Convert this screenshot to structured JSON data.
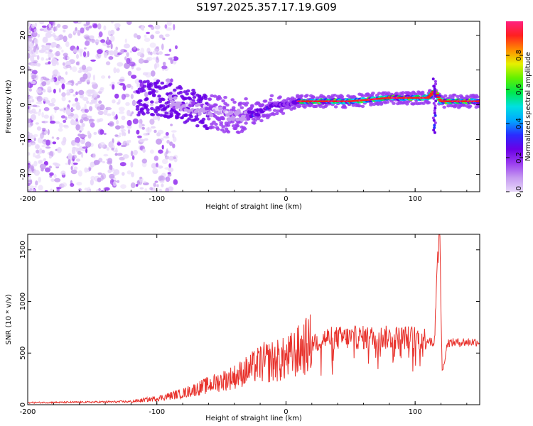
{
  "title": "S197.2025.357.17.19.G09",
  "colors": {
    "snr_line": "#e8322c",
    "frame": "#000000",
    "colormap": [
      "#ffffff",
      "#e8d8fa",
      "#c59af0",
      "#9a3cf0",
      "#6a00e6",
      "#2a2cff",
      "#00a8ff",
      "#00e0e0",
      "#00e84c",
      "#62f000",
      "#e6f000",
      "#ff8c00",
      "#ff2020",
      "#ff2080"
    ]
  },
  "chart_data": [
    {
      "id": "spectrogram",
      "type": "heatmap",
      "xlabel": "Height of straight line (km)",
      "ylabel": "Frequency (Hz)",
      "xlim": [
        -200,
        150
      ],
      "ylim": [
        -25,
        24
      ],
      "xticks": [
        -200,
        -100,
        0,
        100
      ],
      "xtick_labels": [
        "-200",
        "-100",
        "0",
        "100"
      ],
      "yticks": [
        -20,
        -10,
        0,
        10,
        20
      ],
      "ytick_labels": [
        "-20",
        "-10",
        "0",
        "10",
        "20"
      ],
      "colorbar": {
        "label": "Normalized spectral amplitude",
        "range": [
          0,
          1
        ],
        "ticks": [
          0.0,
          0.2,
          0.4,
          0.6,
          0.8
        ],
        "tick_labels": [
          "0.0",
          "0.2",
          "0.4",
          "0.6",
          "0.8"
        ]
      },
      "ridge": {
        "description_points_x": [
          -100,
          -80,
          -60,
          -45,
          -35,
          -20,
          -10,
          0,
          10,
          50,
          80,
          110,
          115,
          120,
          150
        ],
        "description_points_y": [
          2,
          0,
          -2,
          -3,
          -3,
          -2,
          0,
          0,
          1,
          1,
          2,
          2,
          4,
          1,
          1
        ]
      }
    },
    {
      "id": "snr",
      "type": "line",
      "xlabel": "Height of straight line (km)",
      "ylabel": "SNR (10 * v/v)",
      "xlim": [
        -200,
        150
      ],
      "ylim": [
        0,
        1650
      ],
      "xticks": [
        -200,
        -100,
        0,
        100
      ],
      "xtick_labels": [
        "-200",
        "-100",
        "0",
        "100"
      ],
      "yticks": [
        0,
        500,
        1000,
        1500
      ],
      "ytick_labels": [
        "0",
        "500",
        "1000",
        "1500"
      ],
      "envelope": {
        "x": [
          -200,
          -150,
          -120,
          -100,
          -80,
          -60,
          -40,
          -30,
          -20,
          -10,
          0,
          10,
          20,
          30,
          50,
          80,
          100,
          110,
          115,
          117,
          119,
          121,
          125,
          150
        ],
        "y": [
          20,
          25,
          30,
          60,
          110,
          190,
          270,
          330,
          400,
          420,
          440,
          520,
          600,
          640,
          650,
          650,
          650,
          640,
          600,
          1400,
          1650,
          300,
          600,
          610
        ]
      }
    }
  ]
}
